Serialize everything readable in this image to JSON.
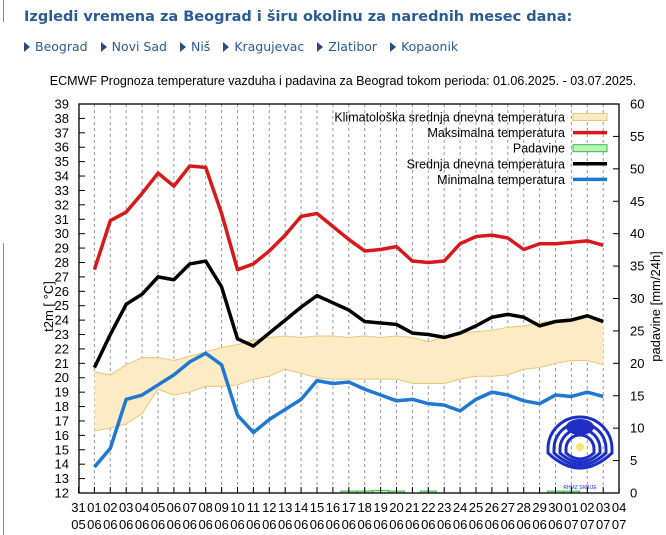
{
  "header": {
    "title": "Izgledi vremena za Beograd i širu okolinu za narednih mesec dana:",
    "cities": [
      "Beograd",
      "Novi Sad",
      "Niš",
      "Kragujevac",
      "Zlatibor",
      "Kopaonik"
    ]
  },
  "chart_data": {
    "type": "line",
    "title": "ECMWF Prognoza temperature vazduha i padavina za Beograd tokom perioda: 01.06.2025. - 03.07.2025.",
    "ylabel": "t2m [ °C]",
    "y2label": "padavine [mm/24h]",
    "ylim": [
      12,
      39
    ],
    "y2lim": [
      0,
      60
    ],
    "yticks": [
      12,
      13,
      14,
      15,
      16,
      17,
      18,
      19,
      20,
      21,
      22,
      23,
      24,
      25,
      26,
      27,
      28,
      29,
      30,
      31,
      32,
      33,
      34,
      35,
      36,
      37,
      38,
      39
    ],
    "y2ticks": [
      0,
      5,
      10,
      15,
      20,
      25,
      30,
      35,
      40,
      45,
      50,
      55,
      60
    ],
    "x_ticks": [
      {
        "day": "31",
        "month": "05"
      },
      {
        "day": "01",
        "month": "06"
      },
      {
        "day": "02",
        "month": "06"
      },
      {
        "day": "03",
        "month": "06"
      },
      {
        "day": "04",
        "month": "06"
      },
      {
        "day": "05",
        "month": "06"
      },
      {
        "day": "06",
        "month": "06"
      },
      {
        "day": "07",
        "month": "06"
      },
      {
        "day": "08",
        "month": "06"
      },
      {
        "day": "09",
        "month": "06"
      },
      {
        "day": "10",
        "month": "06"
      },
      {
        "day": "11",
        "month": "06"
      },
      {
        "day": "12",
        "month": "06"
      },
      {
        "day": "13",
        "month": "06"
      },
      {
        "day": "14",
        "month": "06"
      },
      {
        "day": "15",
        "month": "06"
      },
      {
        "day": "16",
        "month": "06"
      },
      {
        "day": "17",
        "month": "06"
      },
      {
        "day": "18",
        "month": "06"
      },
      {
        "day": "19",
        "month": "06"
      },
      {
        "day": "20",
        "month": "06"
      },
      {
        "day": "21",
        "month": "06"
      },
      {
        "day": "22",
        "month": "06"
      },
      {
        "day": "23",
        "month": "06"
      },
      {
        "day": "24",
        "month": "06"
      },
      {
        "day": "25",
        "month": "06"
      },
      {
        "day": "26",
        "month": "06"
      },
      {
        "day": "27",
        "month": "06"
      },
      {
        "day": "28",
        "month": "06"
      },
      {
        "day": "29",
        "month": "06"
      },
      {
        "day": "30",
        "month": "06"
      },
      {
        "day": "01",
        "month": "07"
      },
      {
        "day": "02",
        "month": "07"
      },
      {
        "day": "03",
        "month": "07"
      },
      {
        "day": "04",
        "month": "07"
      }
    ],
    "x": [
      "01.06",
      "02.06",
      "03.06",
      "04.06",
      "05.06",
      "06.06",
      "07.06",
      "08.06",
      "09.06",
      "10.06",
      "11.06",
      "12.06",
      "13.06",
      "14.06",
      "15.06",
      "16.06",
      "17.06",
      "18.06",
      "19.06",
      "20.06",
      "21.06",
      "22.06",
      "23.06",
      "24.06",
      "25.06",
      "26.06",
      "27.06",
      "28.06",
      "29.06",
      "30.06",
      "01.07",
      "02.07",
      "03.07"
    ],
    "legend_position": "top-right",
    "series": [
      {
        "name": "Klimatološka srednja dnevna temperatura",
        "kind": "band",
        "color": "#fdebc5",
        "edge": "#e8c77a",
        "upper": [
          20.4,
          20.2,
          20.9,
          21.4,
          21.4,
          21.2,
          21.5,
          21.8,
          22.1,
          22.3,
          22.6,
          22.8,
          22.9,
          22.8,
          22.9,
          22.9,
          22.8,
          22.9,
          22.8,
          22.9,
          22.8,
          22.5,
          22.8,
          23.1,
          23.2,
          23.3,
          23.5,
          23.6,
          23.8,
          24.0,
          24.1,
          24.2,
          24.0
        ],
        "lower": [
          16.3,
          16.5,
          16.8,
          17.5,
          19.2,
          18.8,
          19.0,
          19.4,
          19.4,
          19.5,
          19.9,
          20.1,
          20.6,
          20.3,
          20.0,
          19.9,
          19.9,
          19.9,
          19.9,
          19.9,
          19.6,
          19.6,
          19.6,
          19.9,
          20.1,
          20.1,
          20.2,
          20.6,
          20.7,
          21.0,
          21.2,
          21.2,
          20.9
        ]
      },
      {
        "name": "Maksimalna temperatura",
        "kind": "line",
        "color": "#d7191c",
        "values": [
          27.5,
          30.9,
          31.5,
          32.8,
          34.2,
          33.3,
          34.7,
          34.6,
          31.4,
          27.5,
          27.9,
          28.8,
          29.9,
          31.2,
          31.4,
          30.5,
          29.6,
          28.8,
          28.9,
          29.1,
          28.1,
          28.0,
          28.1,
          29.3,
          29.8,
          29.9,
          29.7,
          28.9,
          29.3,
          29.3,
          29.4,
          29.5,
          29.2
        ]
      },
      {
        "name": "Padavine",
        "kind": "precip",
        "color": "#b8f5b0",
        "edge": "#3cb846",
        "values": [
          0,
          0,
          0,
          0,
          0,
          0,
          0,
          0,
          0,
          0,
          0,
          0,
          0,
          0,
          0,
          0,
          0.3,
          0.3,
          0.4,
          0.3,
          0,
          0.3,
          0,
          0,
          0,
          0,
          0,
          0,
          0,
          0.3,
          0.3,
          0,
          0
        ]
      },
      {
        "name": "Srednja dnevna temperatura",
        "kind": "line",
        "color": "#000000",
        "values": [
          20.7,
          23.0,
          25.1,
          25.8,
          27.0,
          26.8,
          27.9,
          28.1,
          26.3,
          22.7,
          22.2,
          23.1,
          24.0,
          24.9,
          25.7,
          25.2,
          24.7,
          23.9,
          23.8,
          23.7,
          23.1,
          23.0,
          22.8,
          23.1,
          23.6,
          24.2,
          24.4,
          24.2,
          23.6,
          23.9,
          24.0,
          24.3,
          23.9
        ]
      },
      {
        "name": "Minimalna temperatura",
        "kind": "line",
        "color": "#1f78d1",
        "values": [
          13.8,
          15.1,
          18.5,
          18.8,
          19.5,
          20.2,
          21.1,
          21.7,
          20.9,
          17.4,
          16.2,
          17.1,
          17.8,
          18.5,
          19.8,
          19.6,
          19.7,
          19.2,
          18.8,
          18.4,
          18.5,
          18.2,
          18.1,
          17.7,
          18.5,
          19.0,
          18.8,
          18.4,
          18.2,
          18.8,
          18.7,
          19.0,
          18.7
        ]
      }
    ]
  },
  "logo": {
    "name": "RHMZ Srbije logo",
    "text": "RHMZ SRBIJE"
  }
}
